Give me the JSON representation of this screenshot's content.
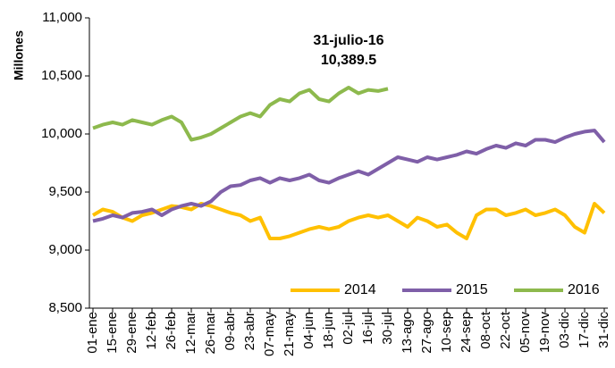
{
  "chart_data": {
    "type": "line",
    "y_label": "Millones",
    "annotations": [
      "31-julio-16",
      "10,389.5"
    ],
    "categories": [
      "01-ene",
      null,
      "15-ene",
      null,
      "29-ene",
      null,
      "12-feb",
      null,
      "26-feb",
      null,
      "12-mar",
      null,
      "26-mar",
      null,
      "09-abr",
      null,
      "23-abr",
      null,
      "07-may",
      null,
      "21-may",
      null,
      "04-jun",
      null,
      "18-jun",
      null,
      "02-jul",
      null,
      "16-jul",
      null,
      "30-jul",
      null,
      "13-ago",
      null,
      "27-ago",
      null,
      "10-sep",
      null,
      "24-sep",
      null,
      "08-oct",
      null,
      "22-oct",
      null,
      "05-nov",
      null,
      "19-nov",
      null,
      "03-dic",
      null,
      "17-dic",
      null,
      "31-dic"
    ],
    "series": [
      {
        "name": "2014",
        "color": "#ffc000",
        "values": [
          9300,
          9350,
          9330,
          9280,
          9250,
          9300,
          9320,
          9350,
          9380,
          9370,
          9350,
          9400,
          9380,
          9350,
          9320,
          9300,
          9250,
          9280,
          9100,
          9100,
          9120,
          9150,
          9180,
          9200,
          9180,
          9200,
          9250,
          9280,
          9300,
          9280,
          9300,
          9250,
          9200,
          9280,
          9250,
          9200,
          9220,
          9150,
          9100,
          9300,
          9350,
          9350,
          9300,
          9320,
          9350,
          9300,
          9320,
          9350,
          9300,
          9200,
          9150,
          9400,
          9320
        ]
      },
      {
        "name": "2015",
        "color": "#7f5fa8",
        "values": [
          9250,
          9270,
          9300,
          9280,
          9320,
          9330,
          9350,
          9300,
          9350,
          9380,
          9400,
          9380,
          9420,
          9500,
          9550,
          9560,
          9600,
          9620,
          9580,
          9620,
          9600,
          9620,
          9650,
          9600,
          9580,
          9620,
          9650,
          9680,
          9650,
          9700,
          9750,
          9800,
          9780,
          9760,
          9800,
          9780,
          9800,
          9820,
          9850,
          9830,
          9870,
          9900,
          9880,
          9920,
          9900,
          9950,
          9950,
          9930,
          9970,
          10000,
          10020,
          10030,
          9930
        ]
      },
      {
        "name": "2016",
        "color": "#8db94d",
        "values": [
          10050,
          10080,
          10100,
          10080,
          10120,
          10100,
          10080,
          10120,
          10150,
          10100,
          9950,
          9970,
          10000,
          10050,
          10100,
          10150,
          10180,
          10150,
          10250,
          10300,
          10280,
          10350,
          10380,
          10300,
          10280,
          10350,
          10400,
          10350,
          10380,
          10370,
          10389.5,
          null,
          null,
          null,
          null,
          null,
          null,
          null,
          null,
          null,
          null,
          null,
          null,
          null,
          null,
          null,
          null,
          null,
          null,
          null,
          null,
          null,
          null
        ]
      }
    ],
    "ylim": [
      8500,
      11000
    ],
    "yticks": [
      {
        "value": 8500,
        "label": "8,500"
      },
      {
        "value": 9000,
        "label": "9,000"
      },
      {
        "value": 9500,
        "label": "9,500"
      },
      {
        "value": 10000,
        "label": "10,000"
      },
      {
        "value": 10500,
        "label": "10,500"
      },
      {
        "value": 11000,
        "label": "11,000"
      }
    ],
    "grid": false,
    "legend": "bottom-right"
  }
}
